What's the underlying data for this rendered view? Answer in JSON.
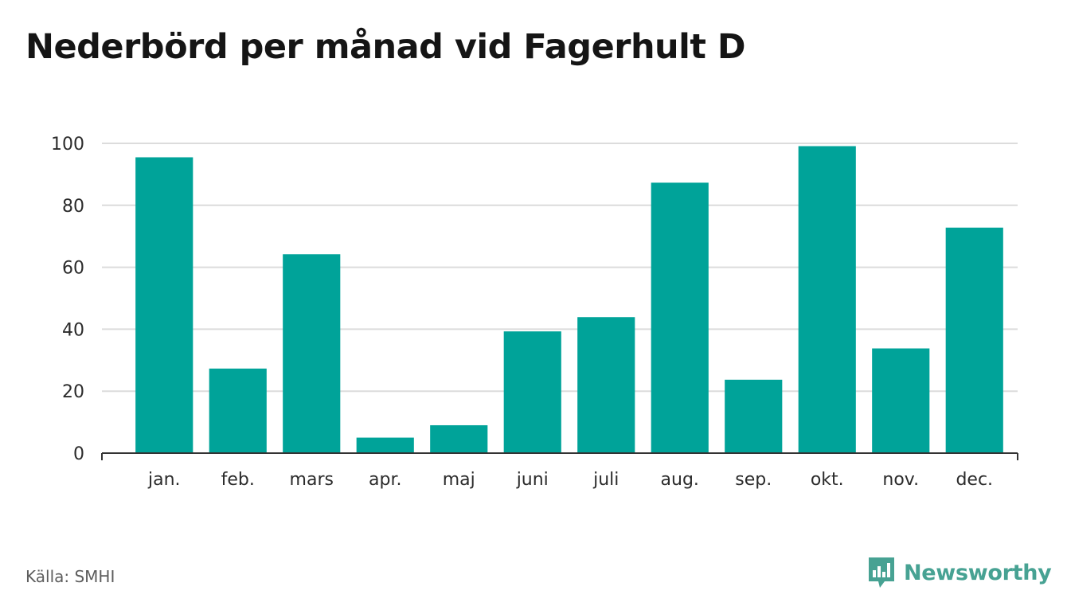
{
  "title": "Nederbörd per månad vid Fagerhult D",
  "source": "Källa: SMHI",
  "brand": {
    "name": "Newsworthy",
    "icon": "newsworthy-logo-icon",
    "color": "#47a293"
  },
  "colors": {
    "bar": "#00a399",
    "grid": "#dcdcdc",
    "axis": "#333333"
  },
  "chart_data": {
    "type": "bar",
    "title": "Nederbörd per månad vid Fagerhult D",
    "xlabel": "",
    "ylabel": "",
    "categories": [
      "jan.",
      "feb.",
      "mars",
      "apr.",
      "maj",
      "juni",
      "juli",
      "aug.",
      "sep.",
      "okt.",
      "nov.",
      "dec."
    ],
    "values": [
      95.5,
      27.3,
      64.2,
      5.0,
      9.0,
      39.3,
      43.9,
      87.3,
      23.7,
      99.1,
      33.8,
      72.8
    ],
    "ylim": [
      0,
      100
    ],
    "yticks": [
      0,
      20,
      40,
      60,
      80,
      100
    ],
    "grid": true,
    "legend": "none"
  }
}
